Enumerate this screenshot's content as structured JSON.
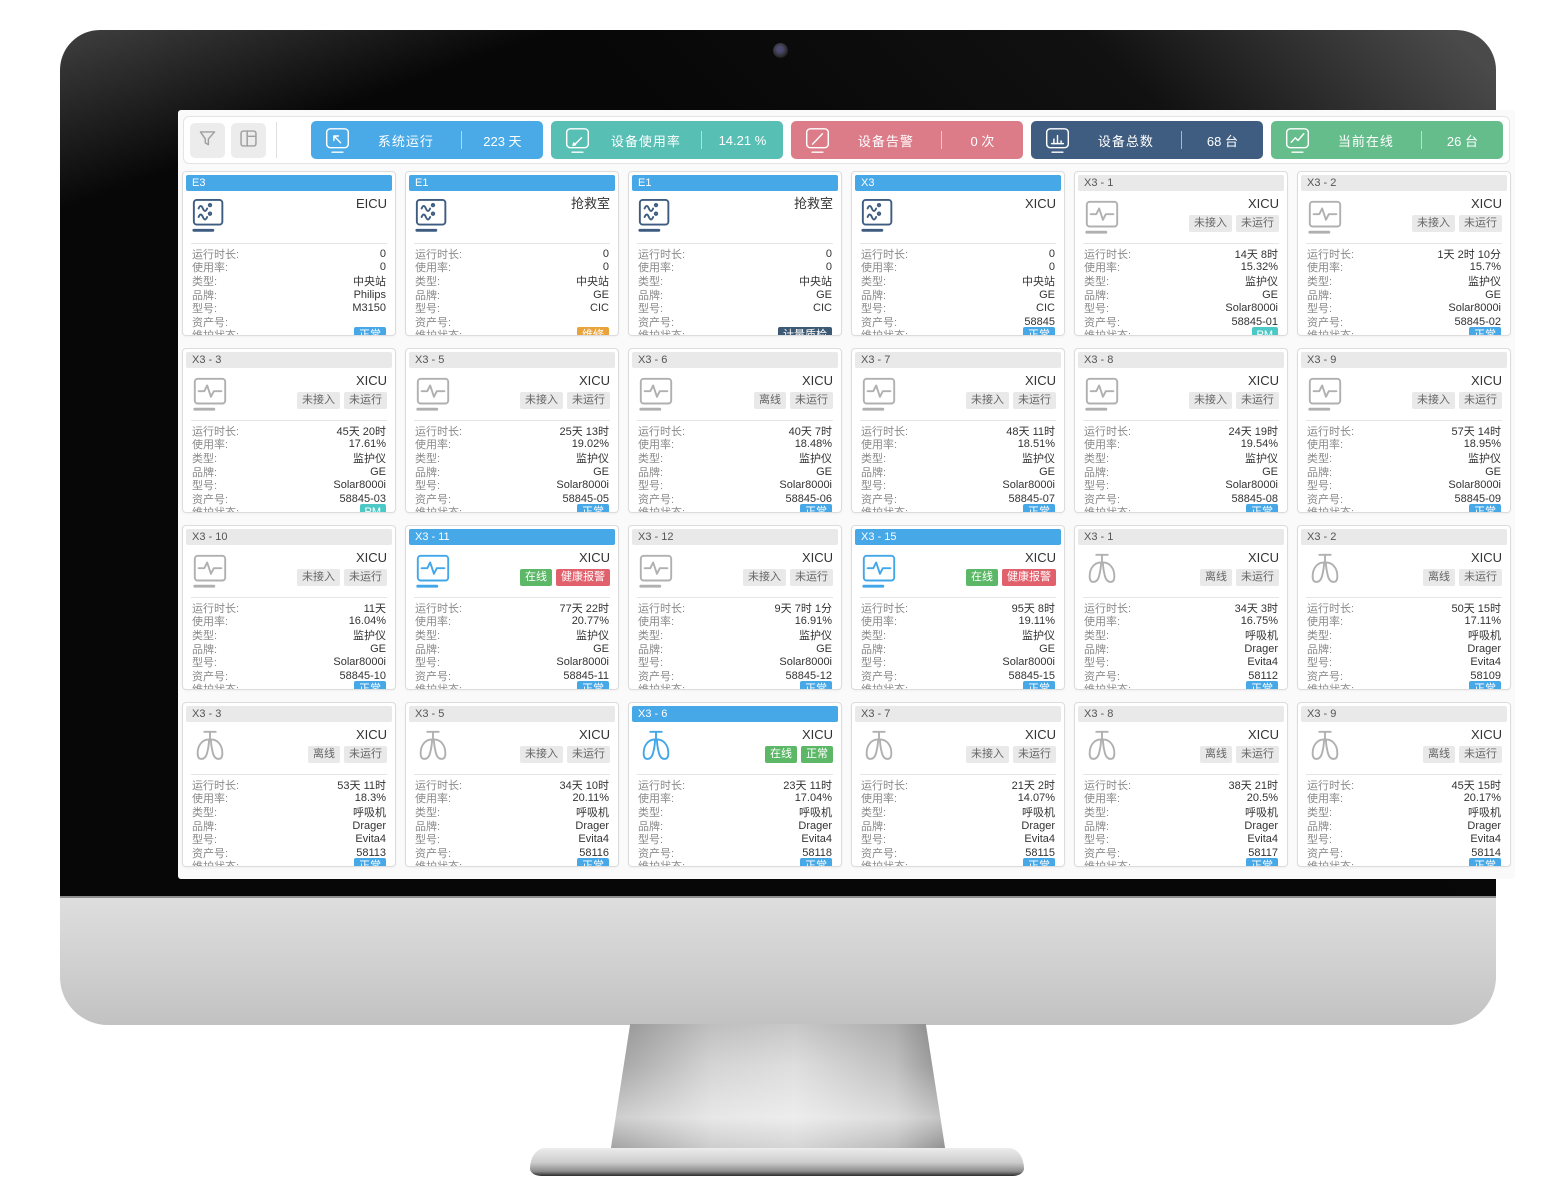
{
  "toolbar": {
    "filter_button": {
      "icon": "funnel-icon"
    },
    "layout_button": {
      "icon": "layout-icon"
    },
    "stats": [
      {
        "icon": "cursor-monitor-icon",
        "label": "系统运行",
        "value": "223 天",
        "color": "#49aae7"
      },
      {
        "icon": "pencil-monitor-icon",
        "label": "设备使用率",
        "value": "14.21 %",
        "color": "#58bfb4"
      },
      {
        "icon": "slash-monitor-icon",
        "label": "设备告警",
        "value": "0 次",
        "color": "#dd7c89"
      },
      {
        "icon": "barchart-monitor-icon",
        "label": "设备总数",
        "value": "68 台",
        "color": "#3f5d80"
      },
      {
        "icon": "trendline-monitor-icon",
        "label": "当前在线",
        "value": "26 台",
        "color": "#65bd8c"
      }
    ]
  },
  "field_labels": [
    "运行时长:",
    "使用率:",
    "类型:",
    "品牌:",
    "型号:",
    "资产号:",
    "维护状态:"
  ],
  "badge_colors": {
    "gray": "#e9e9e9",
    "green": "#5cb867",
    "red": "#e0606c",
    "blue": "#47a8e8",
    "teal": "#4cc9c6",
    "orange": "#e9a23c",
    "navy": "#3d5a74"
  },
  "cards": [
    {
      "id": "E3",
      "header": "blue",
      "location": "EICU",
      "device_icon": "central-station-icon",
      "icon_color": "navy",
      "badges": [],
      "runtime": "0",
      "usage": "0",
      "type": "中央站",
      "brand": "Philips",
      "model": "M3150",
      "asset": "",
      "maintenance": {
        "text": "正常",
        "color": "blue"
      }
    },
    {
      "id": "E1",
      "header": "blue",
      "location": "抢救室",
      "device_icon": "central-station-icon",
      "icon_color": "navy",
      "badges": [],
      "runtime": "0",
      "usage": "0",
      "type": "中央站",
      "brand": "GE",
      "model": "CIC",
      "asset": "",
      "maintenance": {
        "text": "维修",
        "color": "orange"
      }
    },
    {
      "id": "E1",
      "header": "blue",
      "location": "抢救室",
      "device_icon": "central-station-icon",
      "icon_color": "navy",
      "badges": [],
      "runtime": "0",
      "usage": "0",
      "type": "中央站",
      "brand": "GE",
      "model": "CIC",
      "asset": "",
      "maintenance": {
        "text": "计量质检",
        "color": "navy"
      }
    },
    {
      "id": "X3",
      "header": "blue",
      "location": "XICU",
      "device_icon": "central-station-icon",
      "icon_color": "navy",
      "badges": [],
      "runtime": "0",
      "usage": "0",
      "type": "中央站",
      "brand": "GE",
      "model": "CIC",
      "asset": "58845",
      "maintenance": {
        "text": "正常",
        "color": "blue"
      }
    },
    {
      "id": "X3 - 1",
      "header": "gray",
      "location": "XICU",
      "device_icon": "monitor-icon",
      "icon_color": "gray",
      "badges": [
        {
          "text": "未接入",
          "color": "gray"
        },
        {
          "text": "未运行",
          "color": "gray"
        }
      ],
      "runtime": "14天 8时",
      "usage": "15.32%",
      "type": "监护仪",
      "brand": "GE",
      "model": "Solar8000i",
      "asset": "58845-01",
      "maintenance": {
        "text": "PM",
        "color": "teal"
      }
    },
    {
      "id": "X3 - 2",
      "header": "gray",
      "location": "XICU",
      "device_icon": "monitor-icon",
      "icon_color": "gray",
      "badges": [
        {
          "text": "未接入",
          "color": "gray"
        },
        {
          "text": "未运行",
          "color": "gray"
        }
      ],
      "runtime": "1天 2时 10分",
      "usage": "15.7%",
      "type": "监护仪",
      "brand": "GE",
      "model": "Solar8000i",
      "asset": "58845-02",
      "maintenance": {
        "text": "正常",
        "color": "blue"
      }
    },
    {
      "id": "X3 - 3",
      "header": "gray",
      "location": "XICU",
      "device_icon": "monitor-icon",
      "icon_color": "gray",
      "badges": [
        {
          "text": "未接入",
          "color": "gray"
        },
        {
          "text": "未运行",
          "color": "gray"
        }
      ],
      "runtime": "45天 20时",
      "usage": "17.61%",
      "type": "监护仪",
      "brand": "GE",
      "model": "Solar8000i",
      "asset": "58845-03",
      "maintenance": {
        "text": "PM",
        "color": "teal"
      }
    },
    {
      "id": "X3 - 5",
      "header": "gray",
      "location": "XICU",
      "device_icon": "monitor-icon",
      "icon_color": "gray",
      "badges": [
        {
          "text": "未接入",
          "color": "gray"
        },
        {
          "text": "未运行",
          "color": "gray"
        }
      ],
      "runtime": "25天 13时",
      "usage": "19.02%",
      "type": "监护仪",
      "brand": "GE",
      "model": "Solar8000i",
      "asset": "58845-05",
      "maintenance": {
        "text": "正常",
        "color": "blue"
      }
    },
    {
      "id": "X3 - 6",
      "header": "gray",
      "location": "XICU",
      "device_icon": "monitor-icon",
      "icon_color": "gray",
      "badges": [
        {
          "text": "离线",
          "color": "gray"
        },
        {
          "text": "未运行",
          "color": "gray"
        }
      ],
      "runtime": "40天 7时",
      "usage": "18.48%",
      "type": "监护仪",
      "brand": "GE",
      "model": "Solar8000i",
      "asset": "58845-06",
      "maintenance": {
        "text": "正常",
        "color": "blue"
      }
    },
    {
      "id": "X3 - 7",
      "header": "gray",
      "location": "XICU",
      "device_icon": "monitor-icon",
      "icon_color": "gray",
      "badges": [
        {
          "text": "未接入",
          "color": "gray"
        },
        {
          "text": "未运行",
          "color": "gray"
        }
      ],
      "runtime": "48天 11时",
      "usage": "18.51%",
      "type": "监护仪",
      "brand": "GE",
      "model": "Solar8000i",
      "asset": "58845-07",
      "maintenance": {
        "text": "正常",
        "color": "blue"
      }
    },
    {
      "id": "X3 - 8",
      "header": "gray",
      "location": "XICU",
      "device_icon": "monitor-icon",
      "icon_color": "gray",
      "badges": [
        {
          "text": "未接入",
          "color": "gray"
        },
        {
          "text": "未运行",
          "color": "gray"
        }
      ],
      "runtime": "24天 19时",
      "usage": "19.54%",
      "type": "监护仪",
      "brand": "GE",
      "model": "Solar8000i",
      "asset": "58845-08",
      "maintenance": {
        "text": "正常",
        "color": "blue"
      }
    },
    {
      "id": "X3 - 9",
      "header": "gray",
      "location": "XICU",
      "device_icon": "monitor-icon",
      "icon_color": "gray",
      "badges": [
        {
          "text": "未接入",
          "color": "gray"
        },
        {
          "text": "未运行",
          "color": "gray"
        }
      ],
      "runtime": "57天 14时",
      "usage": "18.95%",
      "type": "监护仪",
      "brand": "GE",
      "model": "Solar8000i",
      "asset": "58845-09",
      "maintenance": {
        "text": "正常",
        "color": "blue"
      }
    },
    {
      "id": "X3 - 10",
      "header": "gray",
      "location": "XICU",
      "device_icon": "monitor-icon",
      "icon_color": "gray",
      "badges": [
        {
          "text": "未接入",
          "color": "gray"
        },
        {
          "text": "未运行",
          "color": "gray"
        }
      ],
      "runtime": "11天",
      "usage": "16.04%",
      "type": "监护仪",
      "brand": "GE",
      "model": "Solar8000i",
      "asset": "58845-10",
      "maintenance": {
        "text": "正常",
        "color": "blue"
      }
    },
    {
      "id": "X3 - 11",
      "header": "blue",
      "location": "XICU",
      "device_icon": "monitor-icon",
      "icon_color": "blue",
      "badges": [
        {
          "text": "在线",
          "color": "green"
        },
        {
          "text": "健康报警",
          "color": "red"
        }
      ],
      "runtime": "77天 22时",
      "usage": "20.77%",
      "type": "监护仪",
      "brand": "GE",
      "model": "Solar8000i",
      "asset": "58845-11",
      "maintenance": {
        "text": "正常",
        "color": "blue"
      }
    },
    {
      "id": "X3 - 12",
      "header": "gray",
      "location": "XICU",
      "device_icon": "monitor-icon",
      "icon_color": "gray",
      "badges": [
        {
          "text": "未接入",
          "color": "gray"
        },
        {
          "text": "未运行",
          "color": "gray"
        }
      ],
      "runtime": "9天 7时 1分",
      "usage": "16.91%",
      "type": "监护仪",
      "brand": "GE",
      "model": "Solar8000i",
      "asset": "58845-12",
      "maintenance": {
        "text": "正常",
        "color": "blue"
      }
    },
    {
      "id": "X3 - 15",
      "header": "blue",
      "location": "XICU",
      "device_icon": "monitor-icon",
      "icon_color": "blue",
      "badges": [
        {
          "text": "在线",
          "color": "green"
        },
        {
          "text": "健康报警",
          "color": "red"
        }
      ],
      "runtime": "95天 8时",
      "usage": "19.11%",
      "type": "监护仪",
      "brand": "GE",
      "model": "Solar8000i",
      "asset": "58845-15",
      "maintenance": {
        "text": "正常",
        "color": "blue"
      }
    },
    {
      "id": "X3 - 1",
      "header": "gray",
      "location": "XICU",
      "device_icon": "ventilator-icon",
      "icon_color": "gray",
      "badges": [
        {
          "text": "离线",
          "color": "gray"
        },
        {
          "text": "未运行",
          "color": "gray"
        }
      ],
      "runtime": "34天 3时",
      "usage": "16.75%",
      "type": "呼吸机",
      "brand": "Drager",
      "model": "Evita4",
      "asset": "58112",
      "maintenance": {
        "text": "正常",
        "color": "blue"
      }
    },
    {
      "id": "X3 - 2",
      "header": "gray",
      "location": "XICU",
      "device_icon": "ventilator-icon",
      "icon_color": "gray",
      "badges": [
        {
          "text": "离线",
          "color": "gray"
        },
        {
          "text": "未运行",
          "color": "gray"
        }
      ],
      "runtime": "50天 15时",
      "usage": "17.11%",
      "type": "呼吸机",
      "brand": "Drager",
      "model": "Evita4",
      "asset": "58109",
      "maintenance": {
        "text": "正常",
        "color": "blue"
      }
    },
    {
      "id": "X3 - 3",
      "header": "gray",
      "location": "XICU",
      "device_icon": "ventilator-icon",
      "icon_color": "gray",
      "badges": [
        {
          "text": "离线",
          "color": "gray"
        },
        {
          "text": "未运行",
          "color": "gray"
        }
      ],
      "runtime": "53天 11时",
      "usage": "18.3%",
      "type": "呼吸机",
      "brand": "Drager",
      "model": "Evita4",
      "asset": "58113",
      "maintenance": {
        "text": "正常",
        "color": "blue"
      }
    },
    {
      "id": "X3 - 5",
      "header": "gray",
      "location": "XICU",
      "device_icon": "ventilator-icon",
      "icon_color": "gray",
      "badges": [
        {
          "text": "未接入",
          "color": "gray"
        },
        {
          "text": "未运行",
          "color": "gray"
        }
      ],
      "runtime": "34天 10时",
      "usage": "20.11%",
      "type": "呼吸机",
      "brand": "Drager",
      "model": "Evita4",
      "asset": "58116",
      "maintenance": {
        "text": "正常",
        "color": "blue"
      }
    },
    {
      "id": "X3 - 6",
      "header": "blue",
      "location": "XICU",
      "device_icon": "ventilator-icon",
      "icon_color": "blue",
      "badges": [
        {
          "text": "在线",
          "color": "green"
        },
        {
          "text": "正常",
          "color": "green"
        }
      ],
      "runtime": "23天 11时",
      "usage": "17.04%",
      "type": "呼吸机",
      "brand": "Drager",
      "model": "Evita4",
      "asset": "58118",
      "maintenance": {
        "text": "正常",
        "color": "blue"
      }
    },
    {
      "id": "X3 - 7",
      "header": "gray",
      "location": "XICU",
      "device_icon": "ventilator-icon",
      "icon_color": "gray",
      "badges": [
        {
          "text": "未接入",
          "color": "gray"
        },
        {
          "text": "未运行",
          "color": "gray"
        }
      ],
      "runtime": "21天 2时",
      "usage": "14.07%",
      "type": "呼吸机",
      "brand": "Drager",
      "model": "Evita4",
      "asset": "58115",
      "maintenance": {
        "text": "正常",
        "color": "blue"
      }
    },
    {
      "id": "X3 - 8",
      "header": "gray",
      "location": "XICU",
      "device_icon": "ventilator-icon",
      "icon_color": "gray",
      "badges": [
        {
          "text": "离线",
          "color": "gray"
        },
        {
          "text": "未运行",
          "color": "gray"
        }
      ],
      "runtime": "38天 21时",
      "usage": "20.5%",
      "type": "呼吸机",
      "brand": "Drager",
      "model": "Evita4",
      "asset": "58117",
      "maintenance": {
        "text": "正常",
        "color": "blue"
      }
    },
    {
      "id": "X3 - 9",
      "header": "gray",
      "location": "XICU",
      "device_icon": "ventilator-icon",
      "icon_color": "gray",
      "badges": [
        {
          "text": "离线",
          "color": "gray"
        },
        {
          "text": "未运行",
          "color": "gray"
        }
      ],
      "runtime": "45天 15时",
      "usage": "20.17%",
      "type": "呼吸机",
      "brand": "Drager",
      "model": "Evita4",
      "asset": "58114",
      "maintenance": {
        "text": "正常",
        "color": "blue"
      }
    }
  ]
}
